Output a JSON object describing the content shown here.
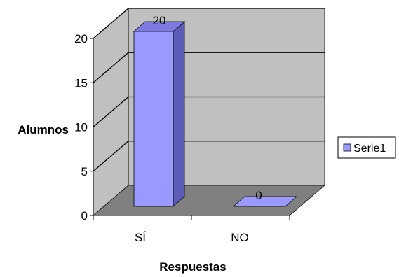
{
  "chart_data": {
    "type": "bar",
    "title": "",
    "categories": [
      "SÍ",
      "NO"
    ],
    "series": [
      {
        "name": "Serie1",
        "values": [
          20,
          0
        ]
      }
    ],
    "data_labels": [
      "20",
      "0"
    ],
    "xlabel": "Respuestas",
    "ylabel": "Alumnos",
    "ylim": [
      0,
      20
    ],
    "yticks": [
      "0",
      "5",
      "10",
      "15",
      "20"
    ],
    "grid": true,
    "legend_position": "right",
    "colors": {
      "bar_front": "#9999ff",
      "bar_side": "#5b5bb8",
      "bar_top": "#7a7ae0",
      "wall": "#c0c0c0",
      "floor": "#808080",
      "gridline": "#000000",
      "outline": "#000000"
    }
  }
}
